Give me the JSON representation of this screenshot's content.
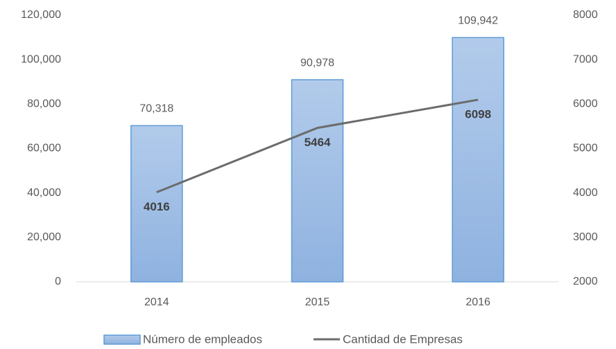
{
  "chart_data": {
    "type": "bar",
    "categories": [
      "2014",
      "2015",
      "2016"
    ],
    "series": [
      {
        "name": "Número de empleados",
        "color": "#9dbde6",
        "values": [
          70318,
          90978,
          109942
        ],
        "value_labels": [
          "70,318",
          "90,978",
          "109,942"
        ]
      },
      {
        "name": "Cantidad de Empresas",
        "color": "#6b6b6b",
        "type": "line",
        "axis": "y2",
        "values": [
          4016,
          5464,
          6098
        ]
      }
    ],
    "ylim": [
      0,
      120000
    ],
    "yticks": [
      0,
      {
        "value": 20000,
        "label": "20,000"
      },
      {
        "value": 40000,
        "label": "40,000"
      },
      {
        "value": 60000,
        "label": "60,000"
      },
      {
        "value": 80000,
        "label": "80,000"
      },
      {
        "value": 100000,
        "label": "100,000"
      },
      {
        "value": 120000,
        "label": "120,000"
      }
    ],
    "y2lim": [
      2000,
      8000
    ],
    "y2ticks": [
      2000,
      3000,
      4000,
      5000,
      6000,
      7000,
      8000
    ],
    "grid": false,
    "legend": "bottom"
  }
}
